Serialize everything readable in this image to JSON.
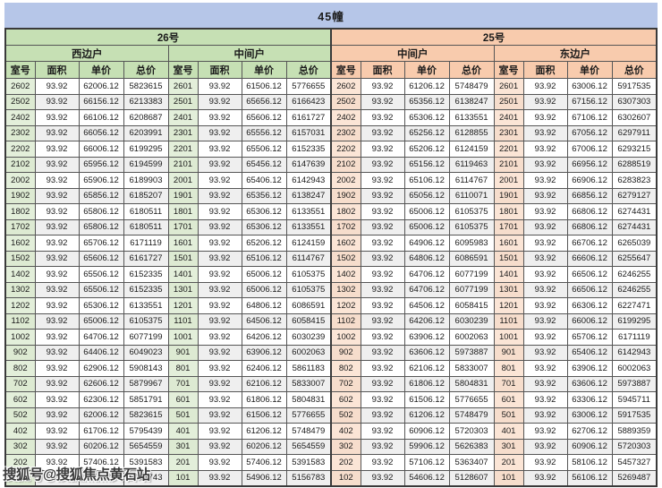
{
  "title": "45幢",
  "watermark": {
    "text": "搜狐号@搜狐焦点黄石站"
  },
  "colors": {
    "title_bar": "#b6c6e8",
    "green_header": "#c6e0b4",
    "green_room_cell": "#e3efda",
    "peach_header": "#f8cbad",
    "peach_room_cell": "#fbe5d6",
    "alt_row": "#efefef",
    "border": "#565656"
  },
  "table": {
    "buildings": [
      {
        "label": "26号",
        "units": [
          "西边户",
          "中间户"
        ]
      },
      {
        "label": "25号",
        "units": [
          "中间户",
          "东边户"
        ]
      }
    ],
    "column_headers": [
      "室号",
      "面积",
      "单价",
      "总价"
    ],
    "rows": [
      [
        "2602",
        "93.92",
        "62006.12",
        "5823615",
        "2601",
        "93.92",
        "61506.12",
        "5776655",
        "2602",
        "93.92",
        "61206.12",
        "5748479",
        "2601",
        "93.92",
        "63006.12",
        "5917535"
      ],
      [
        "2502",
        "93.92",
        "66156.12",
        "6213383",
        "2501",
        "93.92",
        "65656.12",
        "6166423",
        "2502",
        "93.92",
        "65356.12",
        "6138247",
        "2501",
        "93.92",
        "67156.12",
        "6307303"
      ],
      [
        "2402",
        "93.92",
        "66106.12",
        "6208687",
        "2401",
        "93.92",
        "65606.12",
        "6161727",
        "2402",
        "93.92",
        "65306.12",
        "6133551",
        "2401",
        "93.92",
        "67106.12",
        "6302607"
      ],
      [
        "2302",
        "93.92",
        "66056.12",
        "6203991",
        "2301",
        "93.92",
        "65556.12",
        "6157031",
        "2302",
        "93.92",
        "65256.12",
        "6128855",
        "2301",
        "93.92",
        "67056.12",
        "6297911"
      ],
      [
        "2202",
        "93.92",
        "66006.12",
        "6199295",
        "2201",
        "93.92",
        "65506.12",
        "6152335",
        "2202",
        "93.92",
        "65206.12",
        "6124159",
        "2201",
        "93.92",
        "67006.12",
        "6293215"
      ],
      [
        "2102",
        "93.92",
        "65956.12",
        "6194599",
        "2101",
        "93.92",
        "65456.12",
        "6147639",
        "2102",
        "93.92",
        "65156.12",
        "6119463",
        "2101",
        "93.92",
        "66956.12",
        "6288519"
      ],
      [
        "2002",
        "93.92",
        "65906.12",
        "6189903",
        "2001",
        "93.92",
        "65406.12",
        "6142943",
        "2002",
        "93.92",
        "65106.12",
        "6114767",
        "2001",
        "93.92",
        "66906.12",
        "6283823"
      ],
      [
        "1902",
        "93.92",
        "65856.12",
        "6185207",
        "1901",
        "93.92",
        "65356.12",
        "6138247",
        "1902",
        "93.92",
        "65056.12",
        "6110071",
        "1901",
        "93.92",
        "66856.12",
        "6279127"
      ],
      [
        "1802",
        "93.92",
        "65806.12",
        "6180511",
        "1801",
        "93.92",
        "65306.12",
        "6133551",
        "1802",
        "93.92",
        "65006.12",
        "6105375",
        "1801",
        "93.92",
        "66806.12",
        "6274431"
      ],
      [
        "1702",
        "93.92",
        "65806.12",
        "6180511",
        "1701",
        "93.92",
        "65306.12",
        "6133551",
        "1702",
        "93.92",
        "65006.12",
        "6105375",
        "1701",
        "93.92",
        "66806.12",
        "6274431"
      ],
      [
        "1602",
        "93.92",
        "65706.12",
        "6171119",
        "1601",
        "93.92",
        "65206.12",
        "6124159",
        "1602",
        "93.92",
        "64906.12",
        "6095983",
        "1601",
        "93.92",
        "66706.12",
        "6265039"
      ],
      [
        "1502",
        "93.92",
        "65606.12",
        "6161727",
        "1501",
        "93.92",
        "65106.12",
        "6114767",
        "1502",
        "93.92",
        "64806.12",
        "6086591",
        "1501",
        "93.92",
        "66606.12",
        "6255647"
      ],
      [
        "1402",
        "93.92",
        "65506.12",
        "6152335",
        "1401",
        "93.92",
        "65006.12",
        "6105375",
        "1402",
        "93.92",
        "64706.12",
        "6077199",
        "1401",
        "93.92",
        "66506.12",
        "6246255"
      ],
      [
        "1302",
        "93.92",
        "65506.12",
        "6152335",
        "1301",
        "93.92",
        "65006.12",
        "6105375",
        "1302",
        "93.92",
        "64706.12",
        "6077199",
        "1301",
        "93.92",
        "66506.12",
        "6246255"
      ],
      [
        "1202",
        "93.92",
        "65306.12",
        "6133551",
        "1201",
        "93.92",
        "64806.12",
        "6086591",
        "1202",
        "93.92",
        "64506.12",
        "6058415",
        "1201",
        "93.92",
        "66306.12",
        "6227471"
      ],
      [
        "1102",
        "93.92",
        "65006.12",
        "6105375",
        "1101",
        "93.92",
        "64506.12",
        "6058415",
        "1102",
        "93.92",
        "64206.12",
        "6030239",
        "1101",
        "93.92",
        "66006.12",
        "6199295"
      ],
      [
        "1002",
        "93.92",
        "64706.12",
        "6077199",
        "1001",
        "93.92",
        "64206.12",
        "6030239",
        "1002",
        "93.92",
        "63906.12",
        "6002063",
        "1001",
        "93.92",
        "65706.12",
        "6171119"
      ],
      [
        "902",
        "93.92",
        "64406.12",
        "6049023",
        "901",
        "93.92",
        "63906.12",
        "6002063",
        "902",
        "93.92",
        "63606.12",
        "5973887",
        "901",
        "93.92",
        "65406.12",
        "6142943"
      ],
      [
        "802",
        "93.92",
        "62906.12",
        "5908143",
        "801",
        "93.92",
        "62406.12",
        "5861183",
        "802",
        "93.92",
        "62106.12",
        "5833007",
        "801",
        "93.92",
        "63906.12",
        "6002063"
      ],
      [
        "702",
        "93.92",
        "62606.12",
        "5879967",
        "701",
        "93.92",
        "62106.12",
        "5833007",
        "702",
        "93.92",
        "61806.12",
        "5804831",
        "701",
        "93.92",
        "63606.12",
        "5973887"
      ],
      [
        "602",
        "93.92",
        "62306.12",
        "5851791",
        "601",
        "93.92",
        "61806.12",
        "5804831",
        "602",
        "93.92",
        "61506.12",
        "5776655",
        "601",
        "93.92",
        "63306.12",
        "5945711"
      ],
      [
        "502",
        "93.92",
        "62006.12",
        "5823615",
        "501",
        "93.92",
        "61506.12",
        "5776655",
        "502",
        "93.92",
        "61206.12",
        "5748479",
        "501",
        "93.92",
        "63006.12",
        "5917535"
      ],
      [
        "402",
        "93.92",
        "61706.12",
        "5795439",
        "401",
        "93.92",
        "61206.12",
        "5748479",
        "402",
        "93.92",
        "60906.12",
        "5720303",
        "401",
        "93.92",
        "62706.12",
        "5889359"
      ],
      [
        "302",
        "93.92",
        "60206.12",
        "5654559",
        "301",
        "93.92",
        "60206.12",
        "5654559",
        "302",
        "93.92",
        "59906.12",
        "5626383",
        "301",
        "93.92",
        "60906.12",
        "5720303"
      ],
      [
        "202",
        "93.92",
        "57406.12",
        "5391583",
        "201",
        "93.92",
        "57406.12",
        "5391583",
        "202",
        "93.92",
        "57106.12",
        "5363407",
        "201",
        "93.92",
        "58106.12",
        "5457327"
      ],
      [
        "102",
        "93.92",
        "55406.12",
        "5203743",
        "101",
        "93.92",
        "54906.12",
        "5156783",
        "102",
        "93.92",
        "54606.12",
        "5128607",
        "101",
        "93.92",
        "56106.12",
        "5269487"
      ]
    ]
  }
}
